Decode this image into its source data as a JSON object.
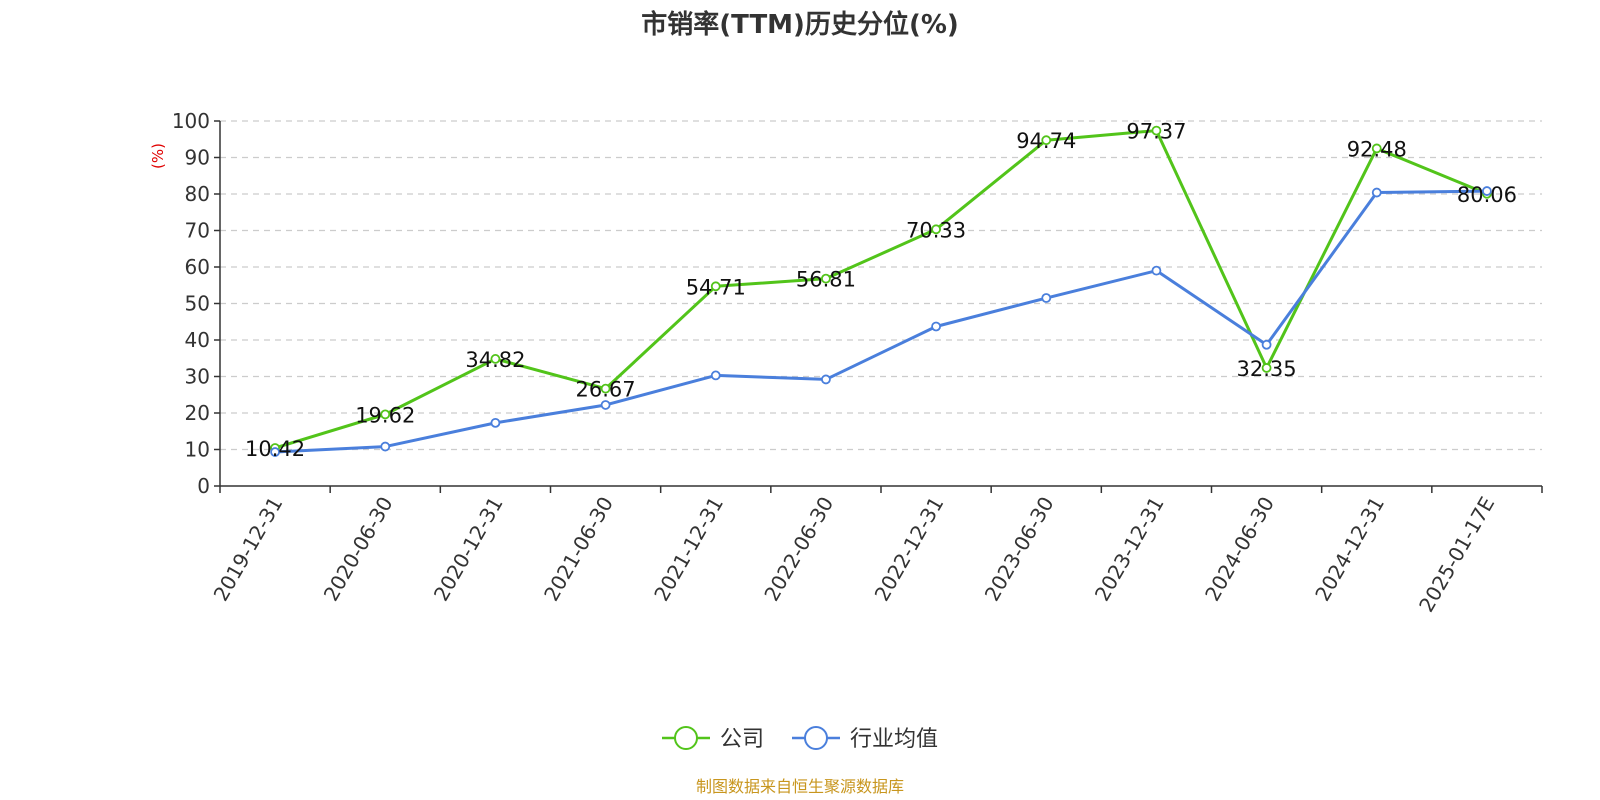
{
  "colors": {
    "company": "#52c41a",
    "industry": "#4a7fdc",
    "grid": "#cccccc",
    "axis": "#333333",
    "unit": "#e00000",
    "source": "#c8961e"
  },
  "chart_data": {
    "type": "line",
    "title": "市销率(TTM)历史分位(%)",
    "ylabel": "(%)",
    "xlabel": "",
    "ylim": [
      0,
      100
    ],
    "yticks": [
      0,
      10,
      20,
      30,
      40,
      50,
      60,
      70,
      80,
      90,
      100
    ],
    "grid": true,
    "legend_position": "bottom-center",
    "categories": [
      "2019-12-31",
      "2020-06-30",
      "2020-12-31",
      "2021-06-30",
      "2021-12-31",
      "2022-06-30",
      "2022-12-31",
      "2023-06-30",
      "2023-12-31",
      "2024-06-30",
      "2024-12-31",
      "2025-01-17E"
    ],
    "series": [
      {
        "name": "公司",
        "color_key": "company",
        "values": [
          10.42,
          19.62,
          34.82,
          26.67,
          54.71,
          56.81,
          70.33,
          94.74,
          97.37,
          32.35,
          92.48,
          80.06
        ],
        "show_labels": true
      },
      {
        "name": "行业均值",
        "color_key": "industry",
        "values": [
          9.3,
          10.8,
          17.3,
          22.2,
          30.3,
          29.2,
          43.7,
          51.5,
          59.0,
          38.7,
          80.4,
          80.8
        ],
        "show_labels": false
      }
    ],
    "source": "制图数据来自恒生聚源数据库"
  }
}
